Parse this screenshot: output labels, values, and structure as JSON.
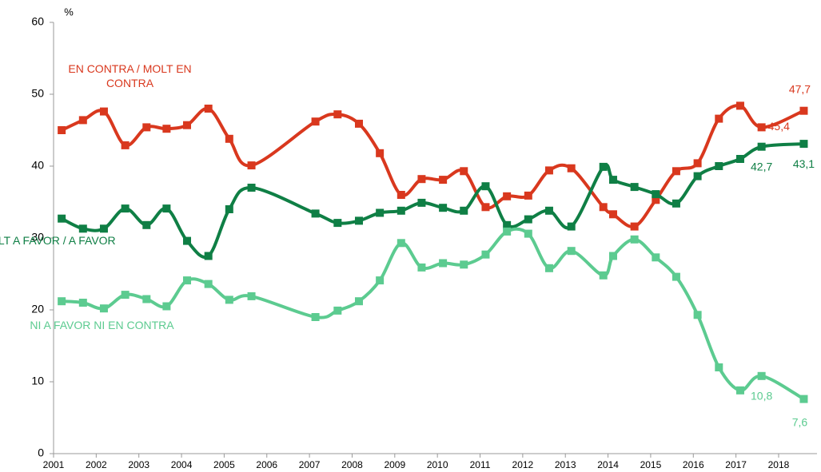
{
  "chart_data": {
    "type": "line",
    "y_label": "%",
    "xlim": [
      2001,
      2018.9
    ],
    "ylim": [
      0,
      60
    ],
    "xticks": [
      2001,
      2002,
      2003,
      2004,
      2005,
      2006,
      2007,
      2008,
      2009,
      2010,
      2011,
      2012,
      2013,
      2014,
      2015,
      2016,
      2017,
      2018
    ],
    "yticks": [
      0,
      10,
      20,
      30,
      40,
      50,
      60
    ],
    "grid": false,
    "x": [
      2001.19,
      2001.69,
      2002.18,
      2002.68,
      2003.18,
      2003.65,
      2004.13,
      2004.63,
      2005.12,
      2005.64,
      2007.14,
      2007.66,
      2008.16,
      2008.65,
      2009.15,
      2009.63,
      2010.13,
      2010.62,
      2011.13,
      2011.63,
      2012.13,
      2012.62,
      2013.14,
      2013.89,
      2014.12,
      2014.62,
      2015.12,
      2015.6,
      2016.1,
      2016.6,
      2017.1,
      2017.6,
      2018.59
    ],
    "series": [
      {
        "name": "EN CONTRA / MOLT EN CONTRA",
        "color": "#d9381e",
        "values": [
          45.0,
          46.4,
          47.6,
          42.9,
          45.4,
          45.2,
          45.7,
          48.0,
          43.8,
          40.1,
          46.2,
          47.2,
          45.9,
          41.8,
          36.0,
          38.2,
          38.1,
          39.3,
          34.3,
          35.8,
          35.9,
          39.4,
          39.7,
          34.3,
          33.3,
          31.6,
          35.3,
          39.3,
          40.4,
          46.6,
          48.4,
          45.4,
          47.7
        ],
        "value_labels": [
          null,
          null,
          null,
          null,
          null,
          null,
          null,
          null,
          null,
          null,
          null,
          null,
          null,
          null,
          null,
          null,
          null,
          null,
          null,
          null,
          null,
          null,
          null,
          null,
          null,
          null,
          null,
          null,
          null,
          null,
          null,
          "45,4",
          "47,7"
        ]
      },
      {
        "name": "MOLT A FAVOR / A FAVOR",
        "color": "#0f7f45",
        "values": [
          32.7,
          31.3,
          31.3,
          34.1,
          31.8,
          34.1,
          29.6,
          27.5,
          34.0,
          37.0,
          33.4,
          32.1,
          32.4,
          33.5,
          33.8,
          34.9,
          34.2,
          33.8,
          37.2,
          31.8,
          32.6,
          33.8,
          31.6,
          39.9,
          38.1,
          37.1,
          36.1,
          34.8,
          38.6,
          40.0,
          41.0,
          42.7,
          43.1
        ],
        "value_labels": [
          null,
          null,
          null,
          null,
          null,
          null,
          null,
          null,
          null,
          null,
          null,
          null,
          null,
          null,
          null,
          null,
          null,
          null,
          null,
          null,
          null,
          null,
          null,
          null,
          null,
          null,
          null,
          null,
          null,
          null,
          null,
          "42,7",
          "43,1"
        ]
      },
      {
        "name": "NI A FAVOR NI EN CONTRA",
        "color": "#5ccb90",
        "values": [
          21.2,
          21.0,
          20.2,
          22.1,
          21.5,
          20.5,
          24.1,
          23.6,
          21.4,
          21.9,
          19.0,
          19.9,
          21.2,
          24.1,
          29.3,
          25.9,
          26.5,
          26.3,
          27.7,
          30.9,
          30.6,
          25.8,
          28.2,
          24.8,
          27.5,
          29.8,
          27.3,
          24.6,
          19.3,
          12.0,
          8.8,
          10.8,
          7.6
        ],
        "value_labels": [
          null,
          null,
          null,
          null,
          null,
          null,
          null,
          null,
          null,
          null,
          null,
          null,
          null,
          null,
          null,
          null,
          null,
          null,
          null,
          null,
          null,
          null,
          null,
          null,
          null,
          null,
          null,
          null,
          null,
          null,
          null,
          "10,8",
          "7,6"
        ]
      }
    ]
  }
}
